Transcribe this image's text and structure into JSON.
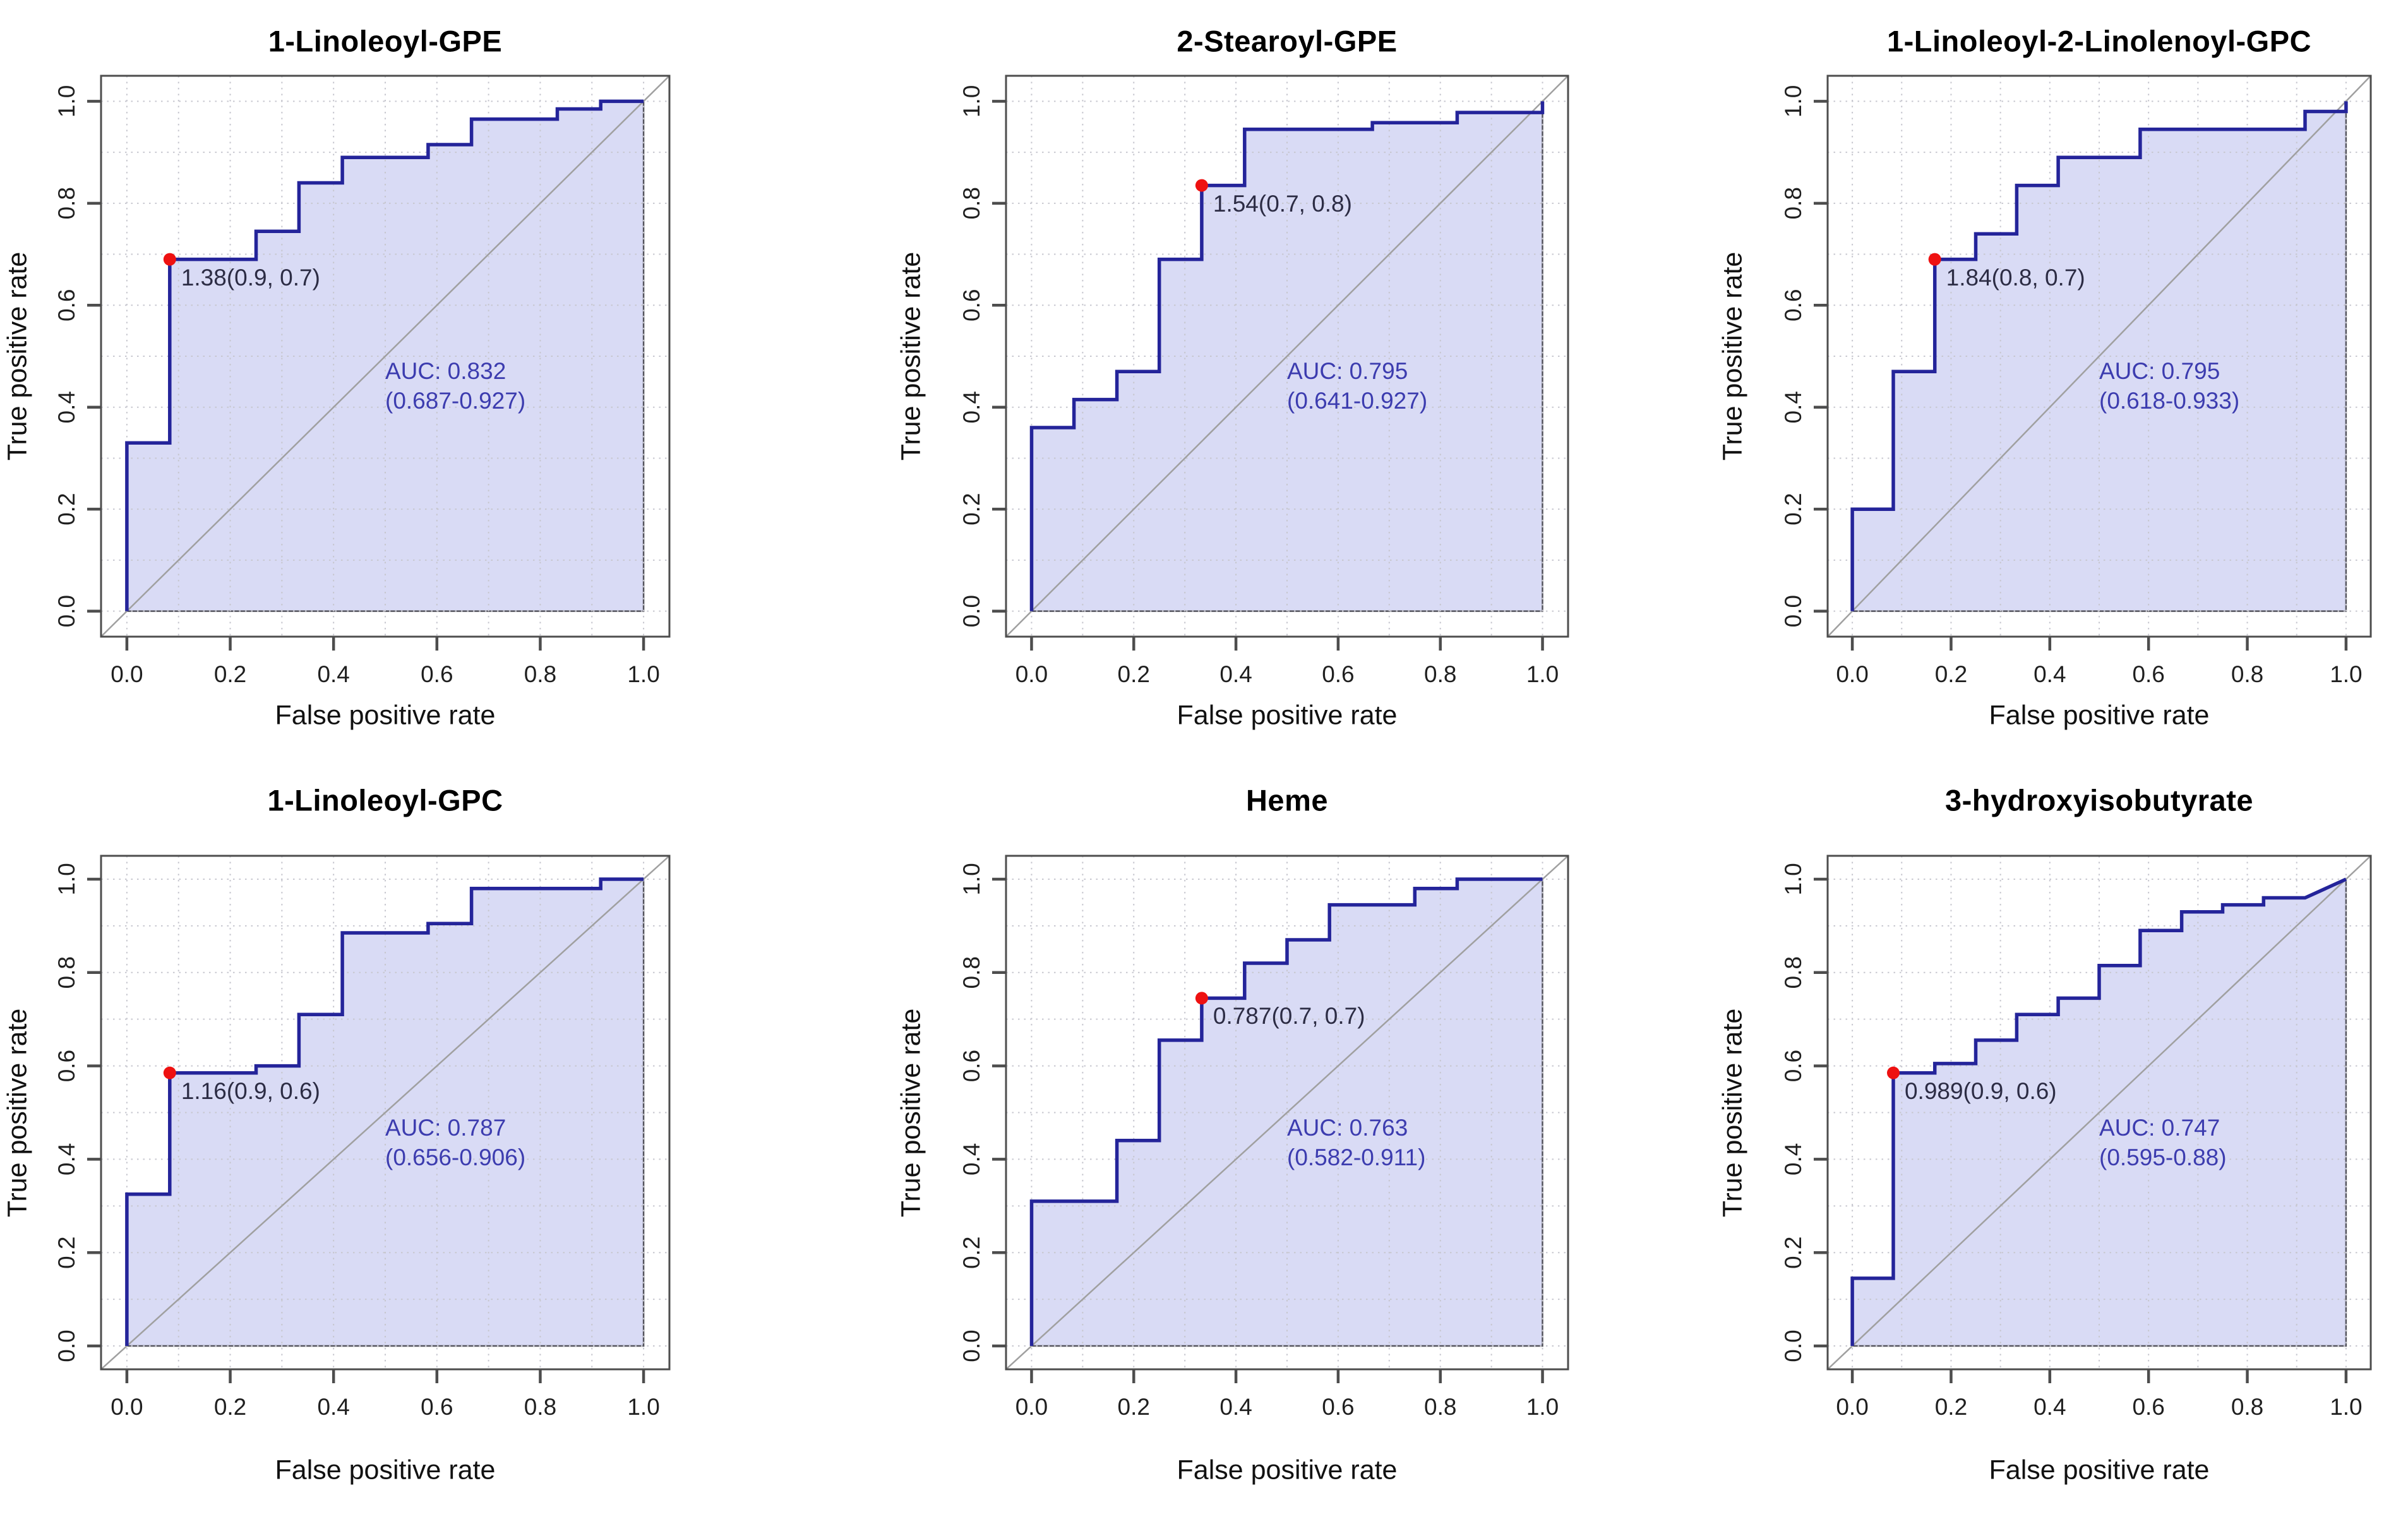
{
  "figure": {
    "background": "#ffffff",
    "description": "Six ROC curve panels in a 2x3 grid"
  },
  "axis": {
    "xlabel": "False positive rate",
    "ylabel": "True positive rate",
    "tick_values": [
      0.0,
      0.2,
      0.4,
      0.6,
      0.8,
      1.0
    ],
    "tick_labels": [
      "0.0",
      "0.2",
      "0.4",
      "0.6",
      "0.8",
      "1.0"
    ],
    "xlim": [
      0,
      1
    ],
    "ylim": [
      0,
      1
    ],
    "grid": true,
    "grid_step": 0.1
  },
  "colors": {
    "curve": "#24249a",
    "fill": "#d9dbf5",
    "fill_border": "#55555e",
    "optimal_point": "#ee1111",
    "auc_text": "#3c3caf",
    "annotation_text": "#2c2c44",
    "grid": "#c7c7cf",
    "diagonal": "#a0a0a0",
    "frame": "#4d4d4d"
  },
  "chart_data": [
    {
      "type": "line",
      "title": "1-Linoleoyl-GPE",
      "xlabel": "False positive rate",
      "ylabel": "True positive rate",
      "auc_label": "AUC: 0.832",
      "auc_ci": "(0.687-0.927)",
      "optimal_point": {
        "x": 0.083,
        "y": 0.69,
        "label": "1.38(0.9, 0.7)",
        "threshold": 1.38,
        "specificity": 0.9,
        "sensitivity": 0.7
      },
      "roc_points": [
        [
          0,
          0
        ],
        [
          0,
          0.33
        ],
        [
          0.083,
          0.33
        ],
        [
          0.083,
          0.69
        ],
        [
          0.25,
          0.69
        ],
        [
          0.25,
          0.745
        ],
        [
          0.333,
          0.745
        ],
        [
          0.333,
          0.84
        ],
        [
          0.417,
          0.84
        ],
        [
          0.417,
          0.89
        ],
        [
          0.583,
          0.89
        ],
        [
          0.583,
          0.915
        ],
        [
          0.667,
          0.915
        ],
        [
          0.667,
          0.965
        ],
        [
          0.833,
          0.965
        ],
        [
          0.833,
          0.985
        ],
        [
          0.917,
          0.985
        ],
        [
          0.917,
          1
        ],
        [
          1,
          1
        ]
      ]
    },
    {
      "type": "line",
      "title": "2-Stearoyl-GPE",
      "xlabel": "False positive rate",
      "ylabel": "True positive rate",
      "auc_label": "AUC: 0.795",
      "auc_ci": "(0.641-0.927)",
      "optimal_point": {
        "x": 0.333,
        "y": 0.835,
        "label": "1.54(0.7, 0.8)",
        "threshold": 1.54,
        "specificity": 0.7,
        "sensitivity": 0.8
      },
      "roc_points": [
        [
          0,
          0
        ],
        [
          0,
          0.36
        ],
        [
          0.083,
          0.36
        ],
        [
          0.083,
          0.415
        ],
        [
          0.167,
          0.415
        ],
        [
          0.167,
          0.47
        ],
        [
          0.25,
          0.47
        ],
        [
          0.25,
          0.69
        ],
        [
          0.333,
          0.69
        ],
        [
          0.333,
          0.835
        ],
        [
          0.417,
          0.835
        ],
        [
          0.417,
          0.945
        ],
        [
          0.667,
          0.945
        ],
        [
          0.667,
          0.958
        ],
        [
          0.833,
          0.958
        ],
        [
          0.833,
          0.978
        ],
        [
          1,
          0.978
        ],
        [
          1,
          1
        ]
      ]
    },
    {
      "type": "line",
      "title": "1-Linoleoyl-2-Linolenoyl-GPC",
      "xlabel": "False positive rate",
      "ylabel": "True positive rate",
      "auc_label": "AUC: 0.795",
      "auc_ci": "(0.618-0.933)",
      "optimal_point": {
        "x": 0.167,
        "y": 0.69,
        "label": "1.84(0.8, 0.7)",
        "threshold": 1.84,
        "specificity": 0.8,
        "sensitivity": 0.7
      },
      "roc_points": [
        [
          0,
          0
        ],
        [
          0,
          0.2
        ],
        [
          0.083,
          0.2
        ],
        [
          0.083,
          0.47
        ],
        [
          0.167,
          0.47
        ],
        [
          0.167,
          0.69
        ],
        [
          0.25,
          0.69
        ],
        [
          0.25,
          0.74
        ],
        [
          0.333,
          0.74
        ],
        [
          0.333,
          0.835
        ],
        [
          0.417,
          0.835
        ],
        [
          0.417,
          0.89
        ],
        [
          0.583,
          0.89
        ],
        [
          0.583,
          0.945
        ],
        [
          0.917,
          0.945
        ],
        [
          0.917,
          0.98
        ],
        [
          1,
          0.98
        ],
        [
          1,
          1
        ]
      ]
    },
    {
      "type": "line",
      "title": "1-Linoleoyl-GPC",
      "xlabel": "False positive rate",
      "ylabel": "True positive rate",
      "auc_label": "AUC: 0.787",
      "auc_ci": "(0.656-0.906)",
      "optimal_point": {
        "x": 0.083,
        "y": 0.585,
        "label": "1.16(0.9, 0.6)",
        "threshold": 1.16,
        "specificity": 0.9,
        "sensitivity": 0.6
      },
      "roc_points": [
        [
          0,
          0
        ],
        [
          0,
          0.325
        ],
        [
          0.083,
          0.325
        ],
        [
          0.083,
          0.585
        ],
        [
          0.25,
          0.585
        ],
        [
          0.25,
          0.6
        ],
        [
          0.333,
          0.6
        ],
        [
          0.333,
          0.71
        ],
        [
          0.417,
          0.71
        ],
        [
          0.417,
          0.885
        ],
        [
          0.583,
          0.885
        ],
        [
          0.583,
          0.905
        ],
        [
          0.667,
          0.905
        ],
        [
          0.667,
          0.98
        ],
        [
          0.917,
          0.98
        ],
        [
          0.917,
          1
        ],
        [
          1,
          1
        ]
      ]
    },
    {
      "type": "line",
      "title": "Heme",
      "xlabel": "False positive rate",
      "ylabel": "True positive rate",
      "auc_label": "AUC: 0.763",
      "auc_ci": "(0.582-0.911)",
      "optimal_point": {
        "x": 0.333,
        "y": 0.745,
        "label": "0.787(0.7, 0.7)",
        "threshold": 0.787,
        "specificity": 0.7,
        "sensitivity": 0.7
      },
      "roc_points": [
        [
          0,
          0
        ],
        [
          0,
          0.31
        ],
        [
          0.167,
          0.31
        ],
        [
          0.167,
          0.44
        ],
        [
          0.25,
          0.44
        ],
        [
          0.25,
          0.655
        ],
        [
          0.333,
          0.655
        ],
        [
          0.333,
          0.745
        ],
        [
          0.417,
          0.745
        ],
        [
          0.417,
          0.82
        ],
        [
          0.5,
          0.82
        ],
        [
          0.5,
          0.87
        ],
        [
          0.583,
          0.87
        ],
        [
          0.583,
          0.945
        ],
        [
          0.75,
          0.945
        ],
        [
          0.75,
          0.98
        ],
        [
          0.833,
          0.98
        ],
        [
          0.833,
          1
        ],
        [
          1,
          1
        ]
      ]
    },
    {
      "type": "line",
      "title": "3-hydroxyisobutyrate",
      "xlabel": "False positive rate",
      "ylabel": "True positive rate",
      "auc_label": "AUC: 0.747",
      "auc_ci": "(0.595-0.88)",
      "optimal_point": {
        "x": 0.083,
        "y": 0.585,
        "label": "0.989(0.9, 0.6)",
        "threshold": 0.989,
        "specificity": 0.9,
        "sensitivity": 0.6
      },
      "roc_points": [
        [
          0,
          0
        ],
        [
          0,
          0.145
        ],
        [
          0.083,
          0.145
        ],
        [
          0.083,
          0.585
        ],
        [
          0.167,
          0.585
        ],
        [
          0.167,
          0.605
        ],
        [
          0.25,
          0.605
        ],
        [
          0.25,
          0.655
        ],
        [
          0.333,
          0.655
        ],
        [
          0.333,
          0.71
        ],
        [
          0.417,
          0.71
        ],
        [
          0.417,
          0.745
        ],
        [
          0.5,
          0.745
        ],
        [
          0.5,
          0.815
        ],
        [
          0.583,
          0.815
        ],
        [
          0.583,
          0.89
        ],
        [
          0.667,
          0.89
        ],
        [
          0.667,
          0.93
        ],
        [
          0.75,
          0.93
        ],
        [
          0.75,
          0.945
        ],
        [
          0.833,
          0.945
        ],
        [
          0.833,
          0.96
        ],
        [
          0.917,
          0.96
        ],
        [
          1,
          1
        ]
      ]
    }
  ]
}
